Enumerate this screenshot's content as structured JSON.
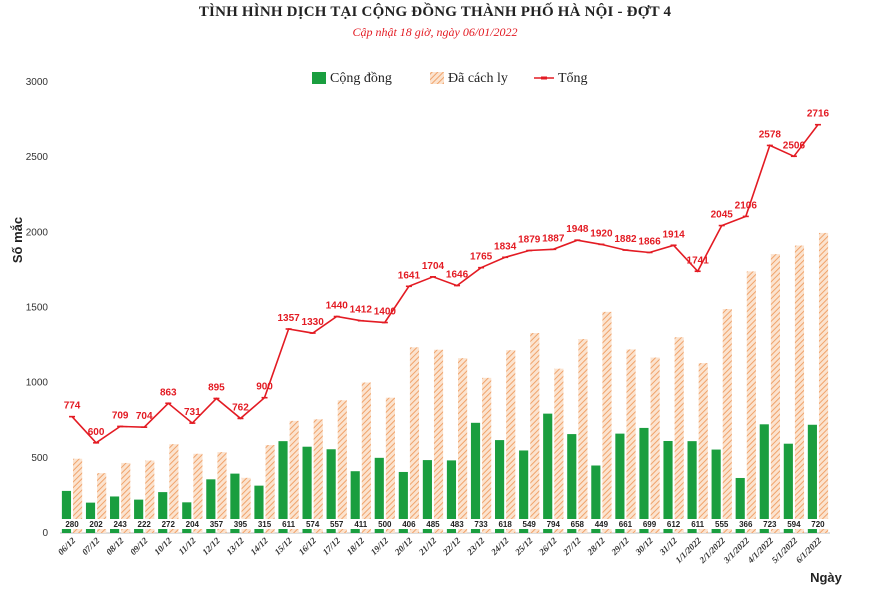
{
  "header": {
    "title": "TÌNH HÌNH DỊCH TẠI CỘNG ĐỒNG THÀNH PHỐ HÀ NỘI - ĐỢT 4",
    "subtitle": "Cập nhật 18 giờ, ngày 06/01/2022"
  },
  "colors": {
    "community": "#1a9e3f",
    "quarantined": "#f4b183",
    "total": "#e31b23"
  },
  "chart_data": {
    "type": "bar",
    "title": "TÌNH HÌNH DỊCH TẠI CỘNG ĐỒNG THÀNH PHỐ HÀ NỘI - ĐỢT 4",
    "subtitle": "Cập nhật 18 giờ, ngày 06/01/2022",
    "xlabel": "Ngày",
    "ylabel": "Số mắc",
    "ylim": [
      0,
      3000
    ],
    "yticks": [
      0,
      500,
      1000,
      1500,
      2000,
      2500,
      3000
    ],
    "grid": false,
    "legend_position": "top",
    "categories": [
      "06/12",
      "07/12",
      "08/12",
      "09/12",
      "10/12",
      "11/12",
      "12/12",
      "13/12",
      "14/12",
      "15/12",
      "16/12",
      "17/12",
      "18/12",
      "19/12",
      "20/12",
      "21/12",
      "22/12",
      "23/12",
      "24/12",
      "25/12",
      "26/12",
      "27/12",
      "28/12",
      "29/12",
      "30/12",
      "31/12",
      "1/1/2022",
      "2/1/2022",
      "3/1/2022",
      "4/1/2022",
      "5/1/2022",
      "6/1/2022"
    ],
    "series": [
      {
        "name": "Cộng đồng",
        "kind": "bar",
        "values": [
          280,
          202,
          243,
          222,
          272,
          204,
          357,
          395,
          315,
          611,
          574,
          557,
          411,
          500,
          406,
          485,
          483,
          733,
          618,
          549,
          794,
          658,
          449,
          661,
          699,
          612,
          611,
          555,
          366,
          723,
          594,
          720
        ]
      },
      {
        "name": "Đã cách ly",
        "kind": "bar",
        "values": [
          494,
          398,
          466,
          482,
          591,
          527,
          538,
          367,
          585,
          746,
          756,
          883,
          1001,
          900,
          1235,
          1219,
          1163,
          1032,
          1216,
          1330,
          1093,
          1290,
          1471,
          1221,
          1167,
          1302,
          1130,
          1490,
          1740,
          1855,
          1912,
          1996
        ]
      },
      {
        "name": "Tổng",
        "kind": "line",
        "values": [
          774,
          600,
          709,
          704,
          863,
          731,
          895,
          762,
          900,
          1357,
          1330,
          1440,
          1412,
          1400,
          1641,
          1704,
          1646,
          1765,
          1834,
          1879,
          1887,
          1948,
          1920,
          1882,
          1866,
          1914,
          1741,
          2045,
          2106,
          2578,
          2506,
          2716
        ]
      }
    ]
  }
}
